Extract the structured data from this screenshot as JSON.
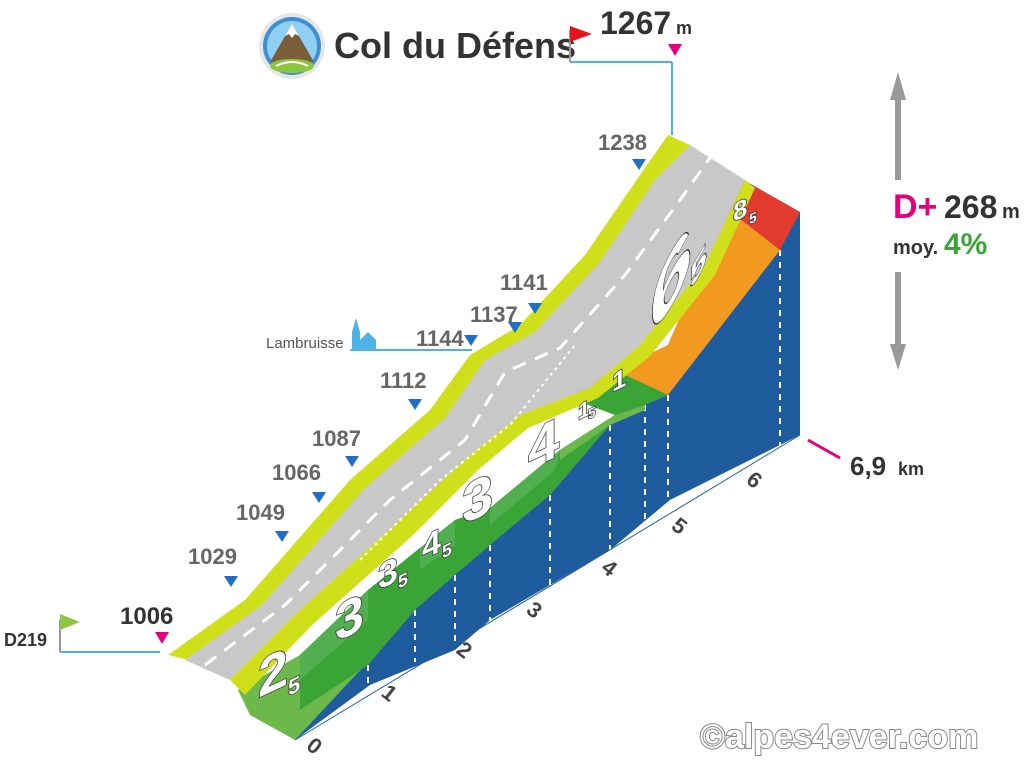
{
  "header": {
    "col_name": "Col du Défens",
    "summit_altitude": "1267",
    "summit_unit": "m"
  },
  "start": {
    "road": "D219",
    "altitude": "1006"
  },
  "village": {
    "name": "Lambruisse"
  },
  "waypoints": [
    {
      "altitude": "1029"
    },
    {
      "altitude": "1049"
    },
    {
      "altitude": "1066"
    },
    {
      "altitude": "1087"
    },
    {
      "altitude": "1112"
    },
    {
      "altitude": "1144"
    },
    {
      "altitude": "1137"
    },
    {
      "altitude": "1141"
    },
    {
      "altitude": "1238"
    }
  ],
  "gradients": [
    {
      "main": "2",
      "dec": "5",
      "color": "#6cb84a"
    },
    {
      "main": "3",
      "dec": "",
      "color": "#3aa437"
    },
    {
      "main": "3",
      "dec": "5",
      "color": "#3aa437"
    },
    {
      "main": "4",
      "dec": "5",
      "color": "#3aa437"
    },
    {
      "main": "3",
      "dec": "",
      "color": "#3aa437"
    },
    {
      "main": "4",
      "dec": "",
      "color": "#3aa437"
    },
    {
      "main": "1",
      "dec": "5",
      "color": "#6cb84a"
    },
    {
      "main": "1",
      "dec": "",
      "color": "#3aa437"
    },
    {
      "main": "6",
      "dec": "5",
      "color": "#f29a1f"
    },
    {
      "main": "8",
      "dec": "5",
      "color": "#e23b2e"
    }
  ],
  "km_ticks": [
    "0",
    "1",
    "2",
    "3",
    "4",
    "5",
    "6"
  ],
  "total_distance": {
    "value": "6,9",
    "unit": "km"
  },
  "summary": {
    "dplus_label": "D+",
    "dplus_value": "268",
    "dplus_unit": "m",
    "avg_label": "moy.",
    "avg_value": "4%"
  },
  "copyright": "©alpes4ever.com",
  "colors": {
    "road_yellow": "#cfe01b",
    "road_gray": "#c8c8c8",
    "side_blue": "#1f5c9e",
    "marker_blue": "#1f6fc8",
    "marker_pink": "#e6007e",
    "dplus_pink": "#e6007e",
    "avg_green": "#3aa437"
  },
  "icons": {
    "mountain": "mountain-logo-icon",
    "start_flag": "green-flag-icon",
    "summit_flag": "red-flag-icon",
    "church": "church-icon",
    "height_arrow": "double-arrow-icon"
  }
}
